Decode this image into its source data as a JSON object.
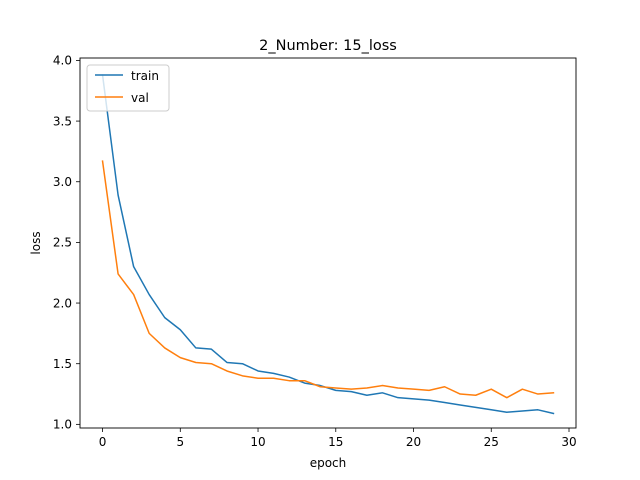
{
  "chart_data": {
    "type": "line",
    "title": "2_Number: 15_loss",
    "xlabel": "epoch",
    "ylabel": "loss",
    "xlim": [
      -1.45,
      30.45
    ],
    "ylim": [
      0.97,
      4.02
    ],
    "xticks": [
      0,
      5,
      10,
      15,
      20,
      25,
      30
    ],
    "yticks": [
      1.0,
      1.5,
      2.0,
      2.5,
      3.0,
      3.5,
      4.0
    ],
    "xtick_labels": [
      "0",
      "5",
      "10",
      "15",
      "20",
      "25",
      "30"
    ],
    "ytick_labels": [
      "1.0",
      "1.5",
      "2.0",
      "2.5",
      "3.0",
      "3.5",
      "4.0"
    ],
    "grid": false,
    "legend_position": "top-left",
    "x": [
      0,
      1,
      2,
      3,
      4,
      5,
      6,
      7,
      8,
      9,
      10,
      11,
      12,
      13,
      14,
      15,
      16,
      17,
      18,
      19,
      20,
      21,
      22,
      23,
      24,
      25,
      26,
      27,
      28,
      29
    ],
    "series": [
      {
        "name": "train",
        "color": "#1f77b4",
        "values": [
          3.88,
          2.89,
          2.3,
          2.07,
          1.88,
          1.78,
          1.63,
          1.62,
          1.51,
          1.5,
          1.44,
          1.42,
          1.39,
          1.34,
          1.32,
          1.28,
          1.27,
          1.24,
          1.26,
          1.22,
          1.21,
          1.2,
          1.18,
          1.16,
          1.14,
          1.12,
          1.1,
          1.11,
          1.12,
          1.09
        ]
      },
      {
        "name": "val",
        "color": "#ff7f0e",
        "values": [
          3.17,
          2.24,
          2.07,
          1.75,
          1.63,
          1.55,
          1.51,
          1.5,
          1.44,
          1.4,
          1.38,
          1.38,
          1.36,
          1.36,
          1.31,
          1.3,
          1.29,
          1.3,
          1.32,
          1.3,
          1.29,
          1.28,
          1.31,
          1.25,
          1.24,
          1.29,
          1.22,
          1.29,
          1.25,
          1.26
        ]
      }
    ]
  }
}
